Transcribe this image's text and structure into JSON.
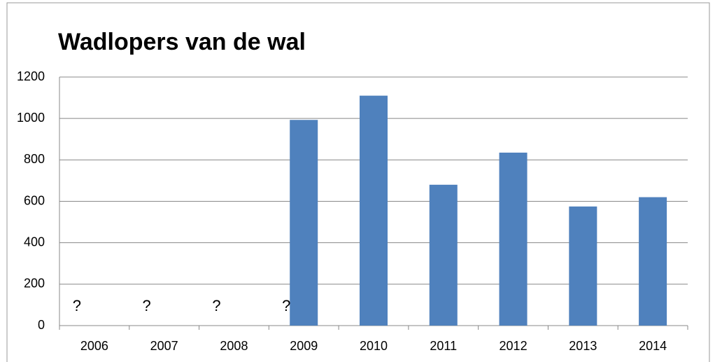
{
  "chart_data": {
    "type": "bar",
    "title": "Wadlopers van de wal",
    "categories": [
      "2006",
      "2007",
      "2008",
      "2009",
      "2010",
      "2011",
      "2012",
      "2013",
      "2014"
    ],
    "values": [
      null,
      null,
      null,
      993,
      1110,
      680,
      835,
      575,
      620
    ],
    "value_labels": [
      "?",
      "?",
      "?",
      "?",
      null,
      null,
      null,
      null,
      null
    ],
    "color": "#4f81bd",
    "ylim": [
      0,
      1200
    ],
    "yticks": [
      0,
      200,
      400,
      600,
      800,
      1000,
      1200
    ],
    "grid": true
  }
}
